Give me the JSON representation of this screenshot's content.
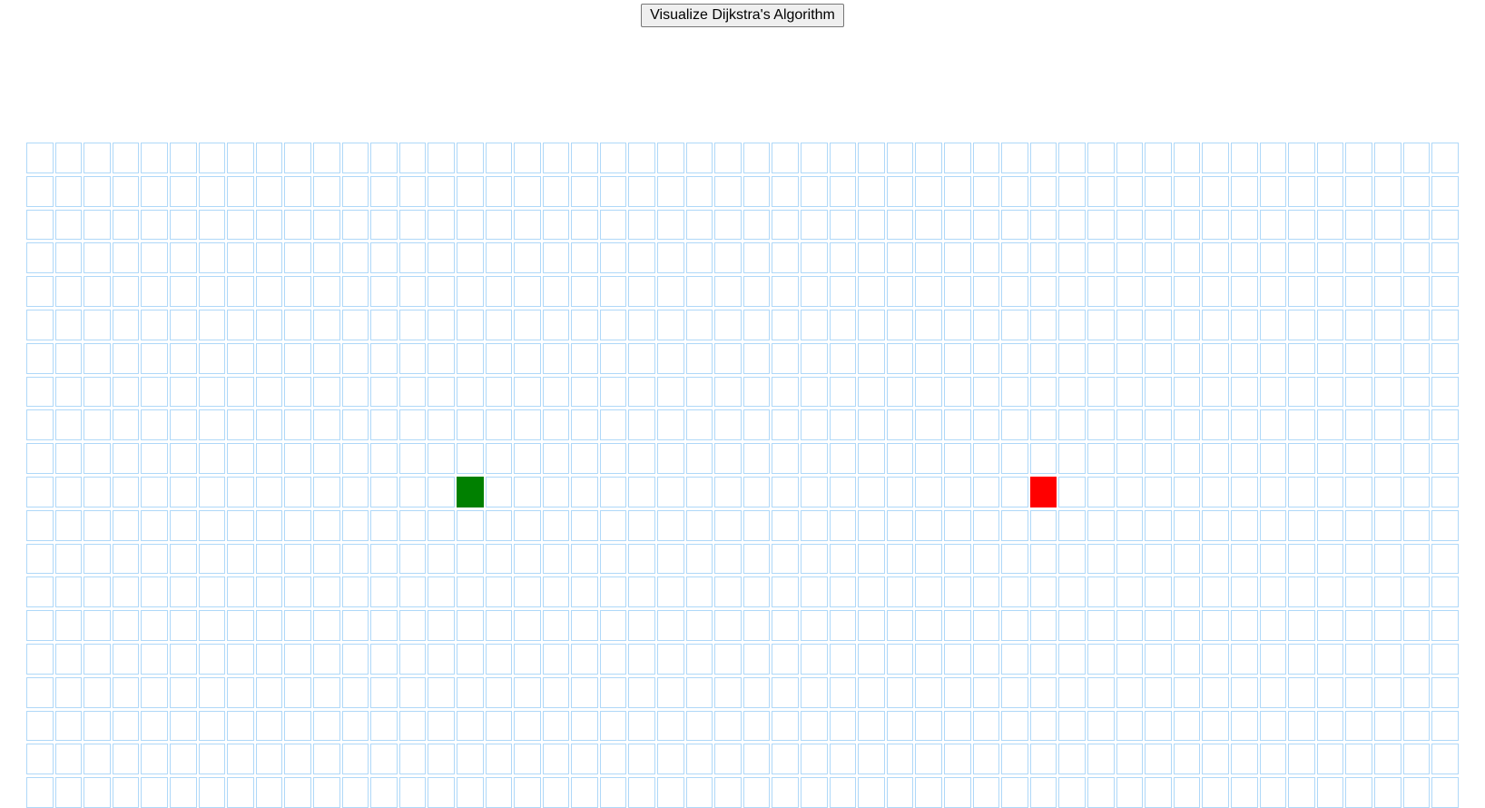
{
  "toolbar": {
    "visualize_label": "Visualize Dijkstra's Algorithm"
  },
  "grid": {
    "rows": 20,
    "cols": 50,
    "cell_border_color": "#afd8f8",
    "cell_background": "#ffffff",
    "start_node": {
      "row": 10,
      "col": 15,
      "color": "#008000"
    },
    "finish_node": {
      "row": 10,
      "col": 35,
      "color": "#ff0000"
    }
  }
}
